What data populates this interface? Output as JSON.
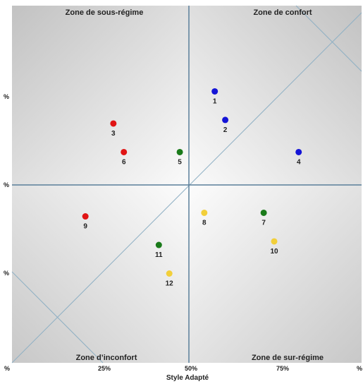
{
  "chart_data": {
    "type": "scatter",
    "xlabel": "Style Adapté",
    "x_ticks": [
      "%",
      "25%",
      "50%",
      "75%",
      "%"
    ],
    "y_ticks": [
      "%",
      "%",
      "%"
    ],
    "xlim": [
      0,
      100
    ],
    "ylim": [
      0,
      100
    ],
    "zones": {
      "top_left": "Zone de sous-régime",
      "top_right": "Zone de confort",
      "bottom_left": "Zone d’inconfort",
      "bottom_right": "Zone de sur-régime"
    },
    "colors": {
      "blue": "#1414d6",
      "red": "#e01414",
      "green": "#1a7a1a",
      "yellow": "#f2cf3a",
      "quadrant_line": "#5a7f9a",
      "diagonal_line": "#8fb0c4"
    },
    "points": [
      {
        "label": "1",
        "x": 58,
        "y": 76,
        "color": "blue"
      },
      {
        "label": "2",
        "x": 61,
        "y": 68,
        "color": "blue"
      },
      {
        "label": "3",
        "x": 29,
        "y": 67,
        "color": "red"
      },
      {
        "label": "4",
        "x": 82,
        "y": 59,
        "color": "blue"
      },
      {
        "label": "5",
        "x": 48,
        "y": 59,
        "color": "green"
      },
      {
        "label": "6",
        "x": 32,
        "y": 59,
        "color": "red"
      },
      {
        "label": "7",
        "x": 72,
        "y": 42,
        "color": "green"
      },
      {
        "label": "8",
        "x": 55,
        "y": 42,
        "color": "yellow"
      },
      {
        "label": "9",
        "x": 21,
        "y": 41,
        "color": "red"
      },
      {
        "label": "10",
        "x": 75,
        "y": 34,
        "color": "yellow"
      },
      {
        "label": "11",
        "x": 42,
        "y": 33,
        "color": "green"
      },
      {
        "label": "12",
        "x": 45,
        "y": 25,
        "color": "yellow"
      }
    ]
  }
}
